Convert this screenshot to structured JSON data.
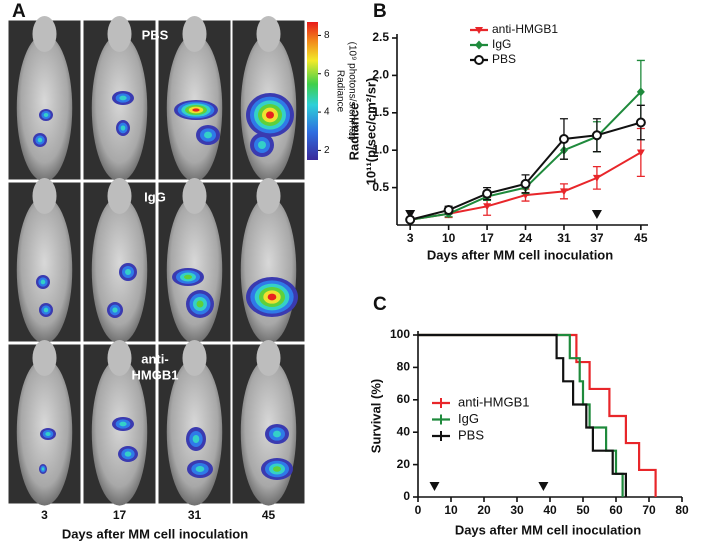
{
  "panel_a": {
    "label": "A",
    "row_labels": [
      [
        "PBS"
      ],
      [
        "IgG"
      ],
      [
        "anti-",
        "HMGB1"
      ]
    ],
    "day_labels": [
      "3",
      "17",
      "31",
      "45"
    ],
    "x_label": "Days after MM cell inoculation",
    "colorbar": {
      "title": [
        "Radiance",
        "(10⁹ photons/s/cm²/sr)"
      ],
      "lim": [
        1.5,
        8.7
      ],
      "ticks": [
        2,
        4,
        6,
        8
      ]
    }
  },
  "chart_data": [
    {
      "type": "line",
      "panel_label": "B",
      "y_label": [
        "Radiance",
        "10¹¹(p/sec/cm²/sr)"
      ],
      "x_label": "Days after MM cell inoculation",
      "x": [
        3,
        10,
        17,
        24,
        31,
        37,
        45
      ],
      "xlim": [
        0.6,
        46.3
      ],
      "xticks": [
        3,
        10,
        17,
        24,
        31,
        37,
        45
      ],
      "ylim": [
        0,
        2.5
      ],
      "yticks": [
        0.5,
        {
          "value": 1.0,
          "label": "1.0"
        },
        1.5,
        {
          "value": 2.0,
          "label": "2.0"
        },
        2.5
      ],
      "treatment_marks": [
        3,
        37
      ],
      "series": [
        {
          "name": "anti-HMGB1",
          "color": "#e8262a",
          "marker": "triangle",
          "values": [
            0.07,
            0.15,
            0.25,
            0.4,
            0.45,
            0.63,
            0.97
          ],
          "errors": [
            0.02,
            0.05,
            0.12,
            0.08,
            0.1,
            0.15,
            0.32
          ]
        },
        {
          "name": "IgG",
          "color": "#1f8a3c",
          "marker": "diamond",
          "values": [
            0.07,
            0.15,
            0.38,
            0.5,
            1.0,
            1.18,
            1.78
          ],
          "errors": [
            0.02,
            0.04,
            0.05,
            0.08,
            0.12,
            0.2,
            0.42
          ]
        },
        {
          "name": "PBS",
          "color": "#111111",
          "marker": "circle",
          "values": [
            0.07,
            0.2,
            0.42,
            0.55,
            1.15,
            1.2,
            1.37
          ],
          "errors": [
            0.02,
            0.05,
            0.08,
            0.12,
            0.27,
            0.22,
            0.23
          ]
        }
      ]
    },
    {
      "type": "step",
      "panel_label": "C",
      "y_label": [
        "Survival (%)"
      ],
      "x_label": "Days after MM cell inoculation",
      "xlim": [
        0,
        80
      ],
      "xticks": [
        0,
        10,
        20,
        30,
        40,
        50,
        60,
        70,
        80
      ],
      "ylim": [
        0,
        100
      ],
      "yticks": [
        0,
        20,
        40,
        60,
        80,
        100
      ],
      "treatment_marks": [
        5,
        38
      ],
      "series": [
        {
          "name": "anti-HMGB1",
          "color": "#e8262a",
          "x": [
            0,
            48,
            52,
            58,
            63,
            67,
            72
          ],
          "values": [
            100,
            83.3,
            66.7,
            50,
            33.3,
            16.7,
            0
          ]
        },
        {
          "name": "IgG",
          "color": "#1f8a3c",
          "x": [
            0,
            46,
            49,
            50,
            52,
            57,
            60,
            62
          ],
          "values": [
            100,
            85.7,
            71.4,
            57.1,
            42.9,
            28.6,
            14.3,
            0
          ]
        },
        {
          "name": "PBS",
          "color": "#111111",
          "x": [
            0,
            42,
            44,
            47,
            51,
            53,
            59,
            63
          ],
          "values": [
            100,
            85.7,
            71.4,
            57.1,
            42.9,
            28.6,
            14.3,
            0
          ]
        }
      ]
    }
  ]
}
